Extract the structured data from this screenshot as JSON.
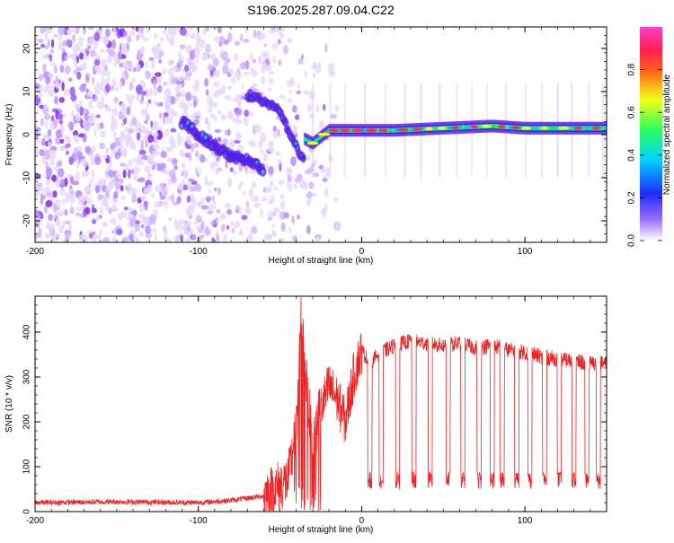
{
  "title": "S196.2025.287.09.04.C22",
  "chart_data": [
    {
      "type": "heatmap",
      "xlabel": "Height of straight line (km)",
      "ylabel": "Frequency (Hz)",
      "xlim": [
        -200,
        150
      ],
      "ylim": [
        -25,
        25
      ],
      "xticks": [
        -200,
        -100,
        0,
        100
      ],
      "yticks": [
        -20,
        -10,
        0,
        10,
        20
      ],
      "features": [
        {
          "name": "scattered noise",
          "x_range": [
            -200,
            -40
          ],
          "freq_range": [
            -25,
            25
          ]
        },
        {
          "name": "descending branch",
          "x": [
            -110,
            -100,
            -90,
            -80,
            -70,
            -60
          ],
          "freq": [
            3,
            0,
            -3,
            -5,
            -6,
            -8
          ]
        },
        {
          "name": "upper branch",
          "x": [
            -70,
            -60,
            -50,
            -45,
            -40,
            -35
          ],
          "freq": [
            9,
            8,
            5,
            1,
            -3,
            -6
          ]
        },
        {
          "name": "carrier line",
          "x": [
            -35,
            -30,
            -20,
            0,
            20,
            50,
            80,
            100,
            150
          ],
          "freq": [
            -1,
            -2,
            1,
            1,
            1,
            1.5,
            2,
            1.5,
            1.5
          ]
        }
      ],
      "colorbar": {
        "label": "Normalized spectral amplitude",
        "ticks": [
          "0.0",
          "0.2",
          "0.4",
          "0.6",
          "0.8"
        ],
        "range": [
          0,
          1
        ],
        "colors": [
          "#ffffff",
          "#9a6cff",
          "#1d2cff",
          "#00d4ff",
          "#2dff59",
          "#f4ff1a",
          "#ff5a1a",
          "#ff1f55",
          "#ff40cc"
        ]
      }
    },
    {
      "type": "line",
      "xlabel": "Height of straight line (km)",
      "ylabel": "SNR (10 * v/v)",
      "xlim": [
        -200,
        150
      ],
      "ylim": [
        0,
        480
      ],
      "xticks": [
        -200,
        -100,
        0,
        100
      ],
      "yticks": [
        0,
        100,
        200,
        300,
        400
      ],
      "series": [
        {
          "name": "SNR",
          "color": "#ee2222",
          "x": [
            -200,
            -150,
            -100,
            -80,
            -60,
            -45,
            -40,
            -37,
            -34,
            -30,
            -25,
            -20,
            -15,
            -10,
            -5,
            0,
            5,
            10,
            20,
            30,
            40,
            50,
            60,
            70,
            80,
            90,
            100,
            110,
            120,
            130,
            140,
            150
          ],
          "values": [
            20,
            22,
            20,
            25,
            35,
            70,
            180,
            460,
            300,
            150,
            230,
            280,
            250,
            200,
            300,
            360,
            330,
            350,
            370,
            380,
            375,
            370,
            375,
            365,
            370,
            360,
            355,
            345,
            340,
            335,
            330,
            330
          ]
        }
      ],
      "dropouts_x": [
        5,
        12,
        22,
        32,
        42,
        53,
        62,
        72,
        80,
        86,
        95,
        103,
        112,
        121,
        130,
        138,
        145
      ]
    }
  ]
}
